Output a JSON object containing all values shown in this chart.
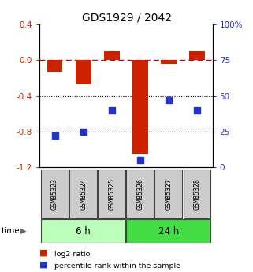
{
  "title": "GDS1929 / 2042",
  "samples": [
    "GSM85323",
    "GSM85324",
    "GSM85325",
    "GSM85326",
    "GSM85327",
    "GSM85328"
  ],
  "log2_ratio": [
    -0.13,
    -0.27,
    0.1,
    -1.05,
    -0.04,
    0.1
  ],
  "percentile_rank": [
    22,
    25,
    40,
    5,
    47,
    40
  ],
  "bar_color": "#cc2200",
  "dot_color": "#2233cc",
  "ylim_left": [
    -1.2,
    0.4
  ],
  "yticks_left": [
    -1.2,
    -0.8,
    -0.4,
    0.0,
    0.4
  ],
  "ylim_right": [
    0,
    100
  ],
  "yticks_right": [
    0,
    25,
    50,
    75,
    100
  ],
  "yticklabels_right": [
    "0",
    "25",
    "50",
    "75",
    "100%"
  ],
  "groups": [
    {
      "label": "6 h",
      "indices": [
        0,
        1,
        2
      ],
      "color": "#bbffbb"
    },
    {
      "label": "24 h",
      "indices": [
        3,
        4,
        5
      ],
      "color": "#44dd44"
    }
  ],
  "time_label": "time",
  "legend_items": [
    {
      "label": "log2 ratio",
      "color": "#cc2200"
    },
    {
      "label": "percentile rank within the sample",
      "color": "#2233cc"
    }
  ],
  "hline_zero_color": "#cc0000",
  "hline_dots_color": "#000000",
  "bg_color": "#ffffff",
  "plot_bg_color": "#ffffff",
  "bar_width": 0.55
}
